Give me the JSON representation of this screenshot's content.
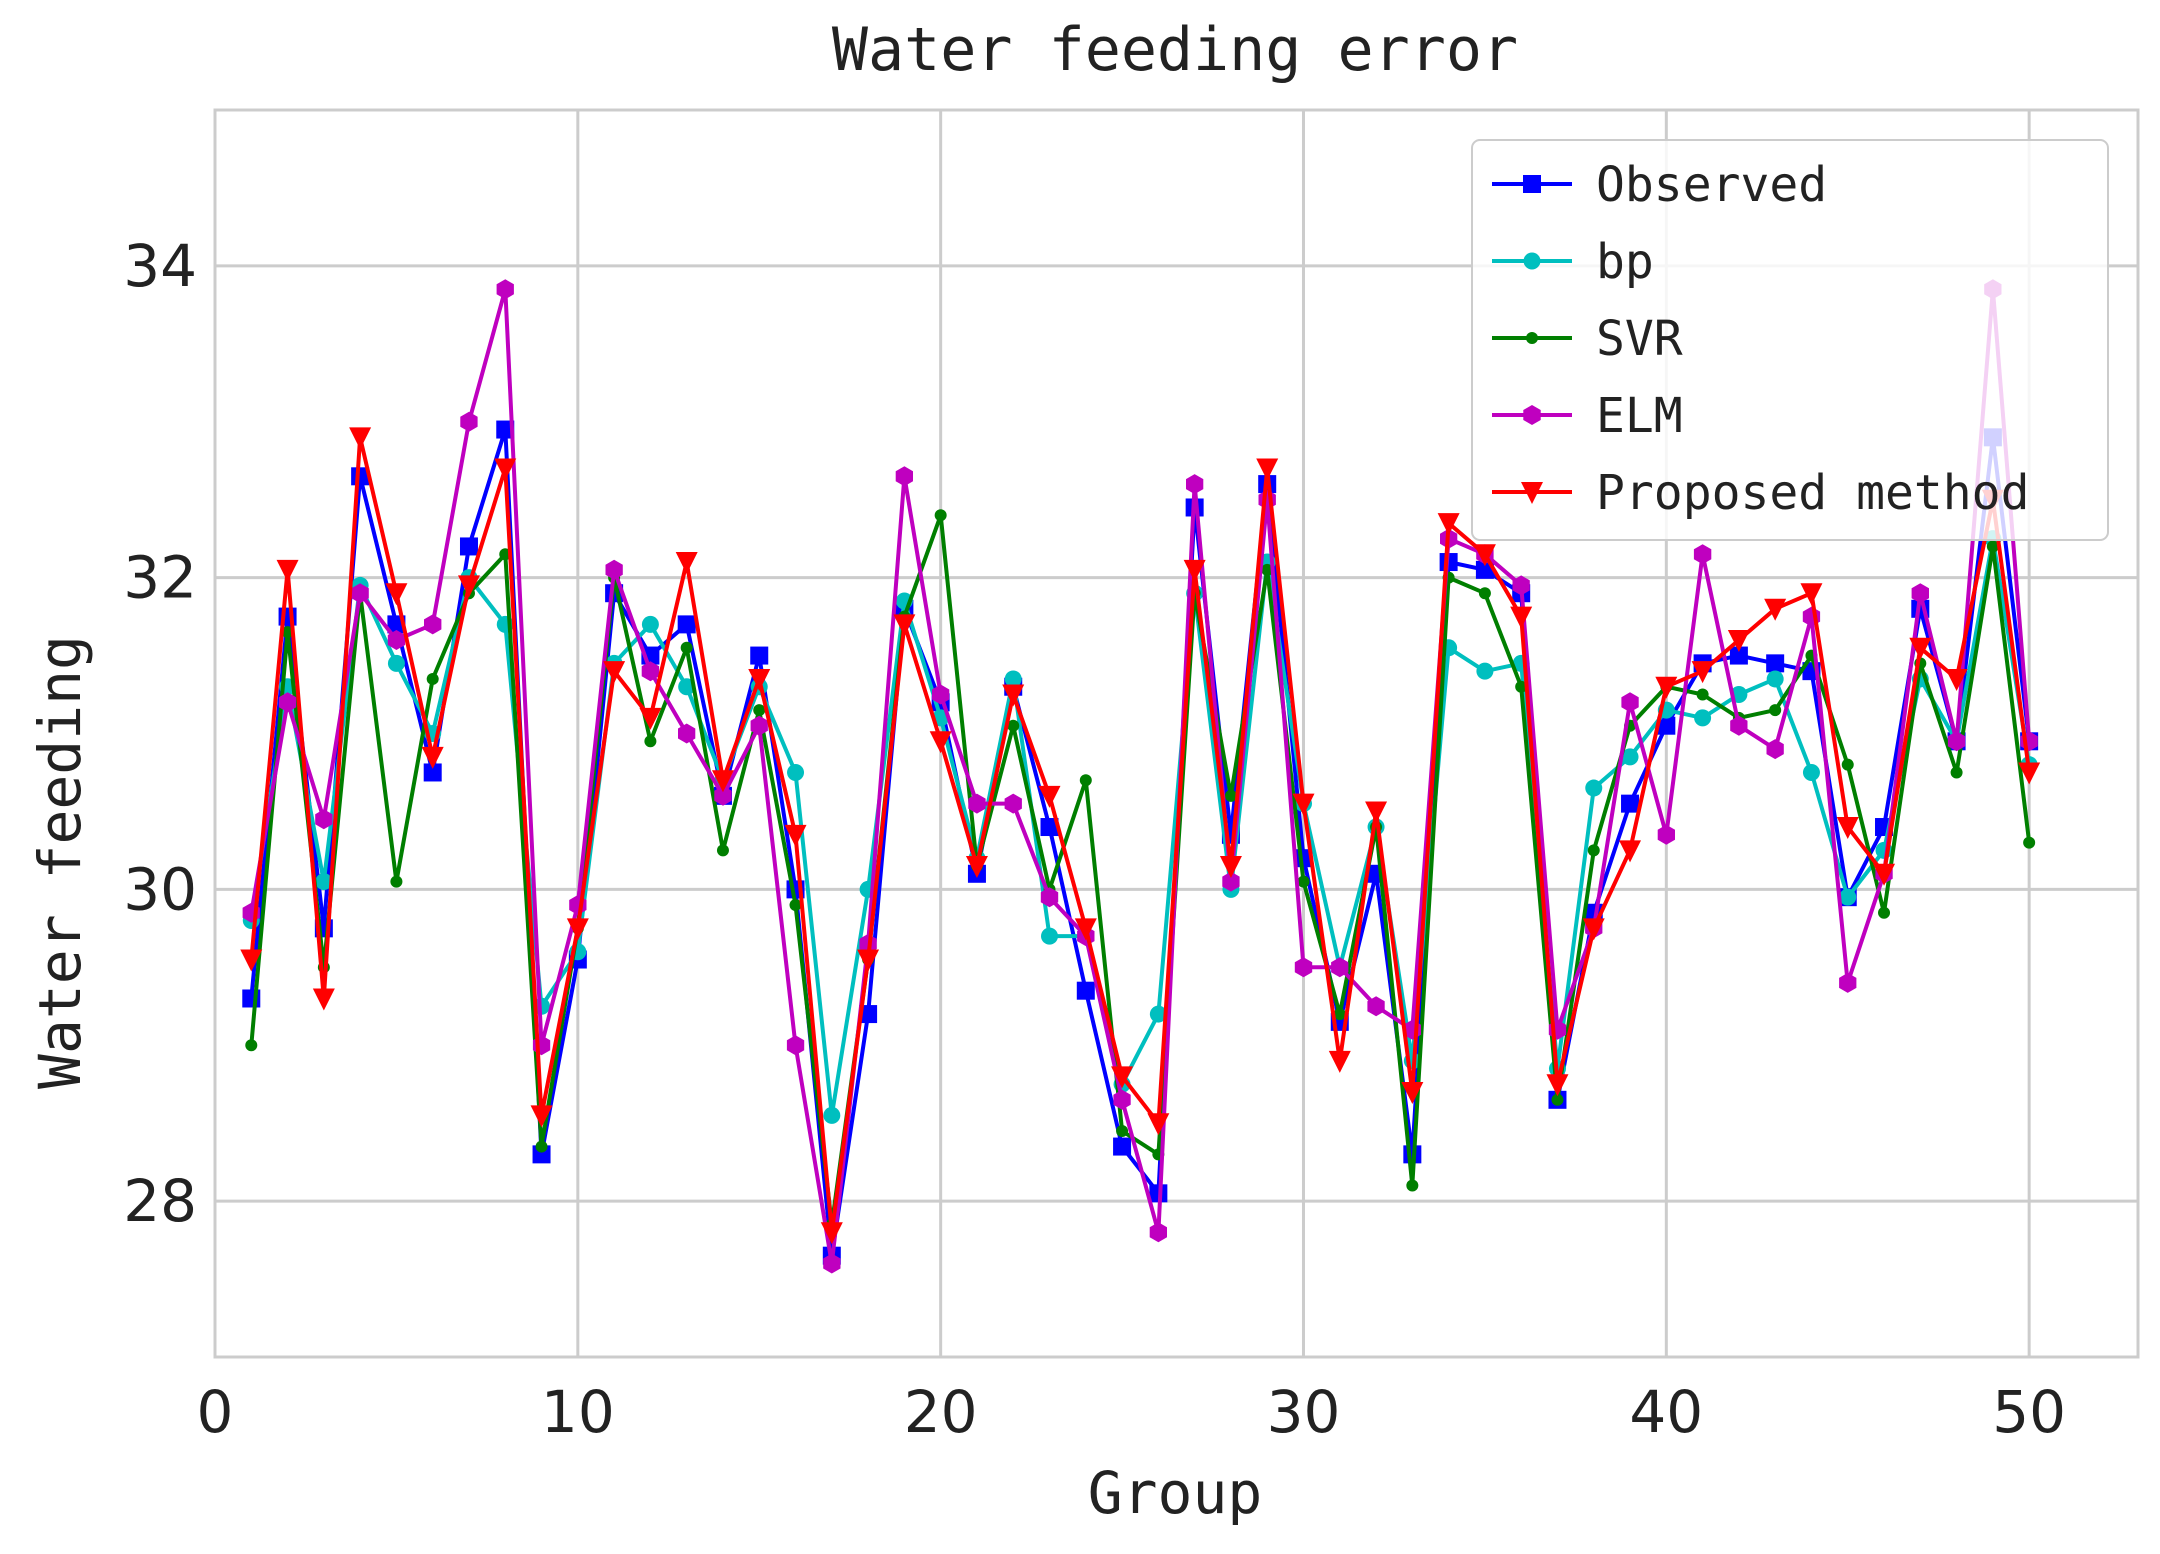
{
  "chart_data": {
    "type": "line",
    "title": "Water feeding error",
    "xlabel": "Group",
    "ylabel": "Water feeding",
    "xlim": [
      0,
      53
    ],
    "ylim": [
      27,
      35
    ],
    "xticks": [
      0,
      10,
      20,
      30,
      40,
      50
    ],
    "yticks": [
      28,
      30,
      32,
      34
    ],
    "grid": true,
    "legend_position": "top-right",
    "x": [
      1,
      2,
      3,
      4,
      5,
      6,
      7,
      8,
      9,
      10,
      11,
      12,
      13,
      14,
      15,
      16,
      17,
      18,
      19,
      20,
      21,
      22,
      23,
      24,
      25,
      26,
      27,
      28,
      29,
      30,
      31,
      32,
      33,
      34,
      35,
      36,
      37,
      38,
      39,
      40,
      41,
      42,
      43,
      44,
      45,
      46,
      47,
      48,
      49,
      50
    ],
    "series": [
      {
        "name": "Observed",
        "color": "#0000ff",
        "marker": "square",
        "values": [
          29.3,
          31.75,
          29.75,
          32.65,
          31.7,
          30.75,
          32.2,
          32.95,
          28.3,
          29.55,
          31.9,
          31.5,
          31.7,
          30.6,
          31.5,
          30.0,
          27.65,
          29.2,
          31.8,
          31.2,
          30.1,
          31.3,
          30.4,
          29.35,
          28.35,
          28.05,
          32.45,
          30.35,
          32.6,
          30.2,
          29.15,
          30.1,
          28.3,
          32.1,
          32.05,
          31.9,
          28.65,
          29.85,
          30.55,
          31.05,
          31.45,
          31.5,
          31.45,
          31.4,
          29.95,
          30.4,
          31.8,
          30.95,
          32.9,
          30.95
        ]
      },
      {
        "name": "bp",
        "color": "#00bfbf",
        "marker": "circle",
        "values": [
          29.8,
          31.3,
          30.05,
          31.95,
          31.45,
          31.0,
          32.0,
          31.7,
          29.25,
          29.6,
          31.45,
          31.7,
          31.3,
          30.7,
          31.3,
          30.75,
          28.55,
          30.0,
          31.85,
          31.1,
          30.2,
          31.35,
          29.7,
          29.7,
          28.75,
          29.2,
          31.9,
          30.0,
          32.1,
          30.55,
          29.5,
          30.4,
          28.9,
          31.55,
          31.4,
          31.45,
          28.85,
          30.65,
          30.85,
          31.15,
          31.1,
          31.25,
          31.35,
          30.75,
          29.95,
          30.25,
          31.35,
          30.95,
          32.25,
          30.8
        ]
      },
      {
        "name": "SVR",
        "color": "#007f00",
        "marker": "dot",
        "values": [
          29.0,
          31.65,
          29.5,
          31.9,
          30.05,
          31.35,
          31.9,
          32.15,
          28.35,
          29.75,
          32.0,
          30.95,
          31.55,
          30.25,
          31.15,
          29.9,
          27.85,
          29.55,
          31.75,
          32.4,
          30.15,
          31.05,
          30.0,
          30.7,
          28.45,
          28.3,
          31.9,
          30.6,
          32.05,
          30.05,
          29.2,
          30.4,
          28.1,
          32.0,
          31.9,
          31.3,
          28.65,
          30.25,
          31.05,
          31.3,
          31.25,
          31.1,
          31.15,
          31.5,
          30.8,
          29.85,
          31.45,
          30.75,
          32.2,
          30.3
        ]
      },
      {
        "name": "ELM",
        "color": "#bf00bf",
        "marker": "hexagon",
        "values": [
          29.85,
          31.2,
          30.45,
          31.9,
          31.6,
          31.7,
          33.0,
          33.85,
          29.0,
          29.9,
          32.05,
          31.4,
          31.0,
          30.6,
          31.05,
          29.0,
          27.6,
          29.65,
          32.65,
          31.25,
          30.55,
          30.55,
          29.95,
          29.7,
          28.65,
          27.8,
          32.6,
          30.05,
          32.5,
          29.5,
          29.5,
          29.25,
          29.1,
          32.25,
          32.15,
          31.95,
          29.1,
          29.75,
          31.2,
          30.35,
          32.15,
          31.05,
          30.9,
          31.75,
          29.4,
          30.1,
          31.9,
          30.95,
          33.85,
          30.95
        ]
      },
      {
        "name": "Proposed method",
        "color": "#ff0000",
        "marker": "triangle-down",
        "values": [
          29.55,
          32.05,
          29.3,
          32.9,
          31.9,
          30.85,
          31.95,
          32.7,
          28.55,
          29.75,
          31.4,
          31.1,
          32.1,
          30.7,
          31.35,
          30.35,
          27.8,
          29.55,
          31.7,
          30.95,
          30.15,
          31.25,
          30.6,
          29.75,
          28.8,
          28.5,
          32.05,
          30.15,
          32.7,
          30.55,
          28.9,
          30.5,
          28.7,
          32.35,
          32.15,
          31.75,
          28.75,
          29.75,
          30.25,
          31.3,
          31.4,
          31.6,
          31.8,
          31.9,
          30.4,
          30.1,
          31.55,
          31.35,
          32.5,
          30.75
        ]
      }
    ]
  }
}
